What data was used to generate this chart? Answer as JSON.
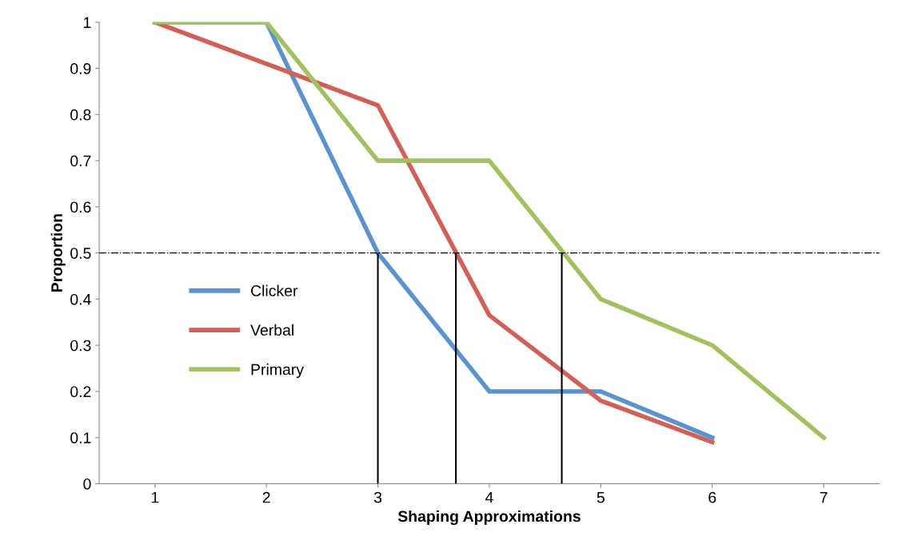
{
  "chart_data": {
    "type": "line",
    "xlabel": "Shaping Approximations",
    "ylabel": "Proportion",
    "x": [
      1,
      2,
      3,
      4,
      5,
      6,
      7
    ],
    "series": [
      {
        "name": "Clicker",
        "color": "#5b93cc",
        "values": [
          1,
          1,
          0.5,
          0.2,
          0.2,
          0.1,
          null
        ]
      },
      {
        "name": "Verbal",
        "color": "#cf6158",
        "values": [
          1,
          0.91,
          0.82,
          0.365,
          0.18,
          0.09,
          null
        ]
      },
      {
        "name": "Primary",
        "color": "#a2c262",
        "values": [
          1,
          1,
          0.7,
          0.7,
          0.4,
          0.3,
          0.1
        ]
      }
    ],
    "xlim": [
      0.5,
      7.5
    ],
    "xticks": [
      1,
      2,
      3,
      4,
      5,
      6,
      7
    ],
    "ylim": [
      0,
      1
    ],
    "yticks": [
      0,
      0.1,
      0.2,
      0.3,
      0.4,
      0.5,
      0.6,
      0.7,
      0.8,
      0.9,
      1
    ],
    "ref_lines": [
      {
        "axis": "y",
        "value": 0.5,
        "color": "#000000",
        "line_style": "dashdot"
      },
      {
        "axis": "x",
        "value": 3,
        "color": "#000000",
        "line_style": "solid"
      },
      {
        "axis": "x",
        "value": 3.7,
        "color": "#000000",
        "line_style": "solid"
      },
      {
        "axis": "x",
        "value": 4.65,
        "color": "#000000",
        "line_style": "solid"
      }
    ],
    "grid": false,
    "legend": "center left",
    "marker": "none",
    "line_style": "solid"
  }
}
